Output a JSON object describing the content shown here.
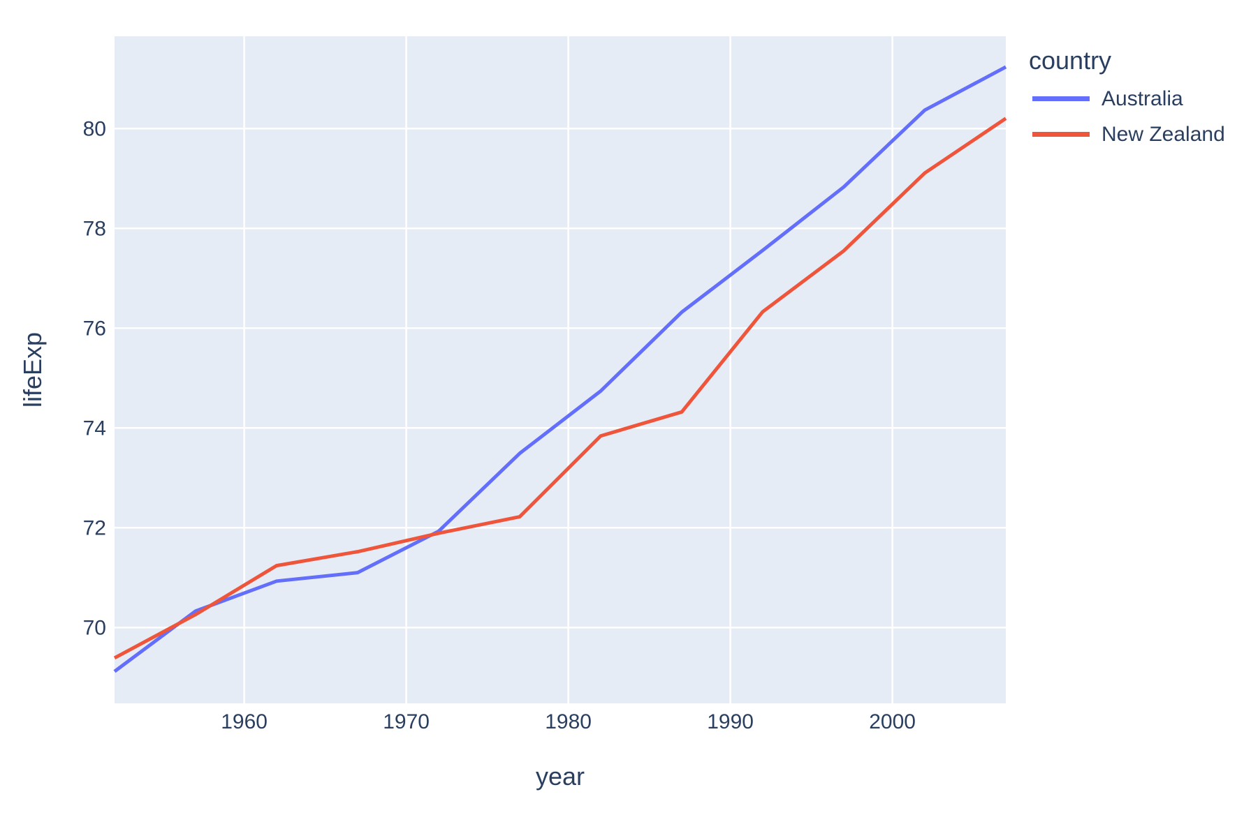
{
  "chart_data": {
    "type": "line",
    "title": "",
    "xlabel": "year",
    "ylabel": "lifeExp",
    "legend_title": "country",
    "x": [
      1952,
      1957,
      1962,
      1967,
      1972,
      1977,
      1982,
      1987,
      1992,
      1997,
      2002,
      2007
    ],
    "series": [
      {
        "name": "Australia",
        "color": "#636EFA",
        "values": [
          69.12,
          70.33,
          70.93,
          71.1,
          71.93,
          73.49,
          74.74,
          76.32,
          77.56,
          78.83,
          80.37,
          81.235
        ]
      },
      {
        "name": "New Zealand",
        "color": "#EF553B",
        "values": [
          69.39,
          70.26,
          71.24,
          71.52,
          71.89,
          72.22,
          73.84,
          74.32,
          76.33,
          77.55,
          79.11,
          80.204
        ]
      }
    ],
    "x_ticks": [
      1960,
      1970,
      1980,
      1990,
      2000
    ],
    "y_ticks": [
      70,
      72,
      74,
      76,
      78,
      80
    ],
    "xlim": [
      1952,
      2007
    ],
    "ylim": [
      68.48,
      81.85
    ],
    "grid": true,
    "legend_position": "right",
    "colors": {
      "plot_bg": "#E5ECF6",
      "grid": "#FFFFFF",
      "text": "#2A3F5F",
      "paper_bg": "#FFFFFF"
    }
  }
}
